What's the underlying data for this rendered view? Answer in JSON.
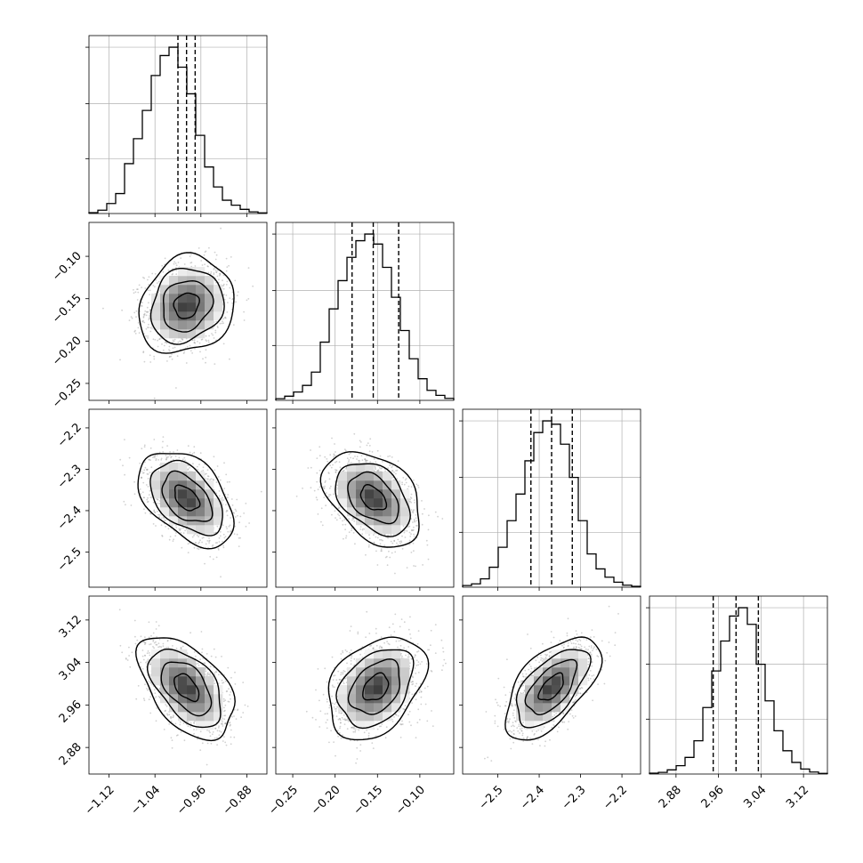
{
  "chart_data": {
    "type": "corner",
    "title": "",
    "colors": {
      "line": "#000000",
      "grid": "#b0b0b0",
      "points": "#9a9a9a",
      "frame": "#000000"
    },
    "grid": true,
    "parameters": [
      {
        "range": [
          -1.155,
          -0.845
        ],
        "ticks": [
          -1.12,
          -1.04,
          -0.96,
          -0.88
        ],
        "tick_labels": [
          "−1.12",
          "−1.04",
          "−0.96",
          "−0.88"
        ],
        "quantiles": [
          -1.0,
          -0.985,
          -0.97
        ],
        "hist_y_max": 1.07,
        "hist_y_ticks": [
          0.33,
          0.66,
          1.0
        ],
        "hist": [
          0.005,
          0.02,
          0.06,
          0.12,
          0.3,
          0.45,
          0.62,
          0.83,
          0.95,
          1.0,
          0.88,
          0.72,
          0.47,
          0.28,
          0.16,
          0.08,
          0.05,
          0.025,
          0.01,
          0.004
        ]
      },
      {
        "range": [
          -0.27,
          -0.06
        ],
        "ticks": [
          -0.25,
          -0.2,
          -0.15,
          -0.1
        ],
        "tick_labels": [
          "−0.25",
          "−0.20",
          "−0.15",
          "−0.10"
        ],
        "y_ticks": [
          -0.25,
          -0.2,
          -0.15,
          -0.1
        ],
        "y_tick_labels": [
          "−0.25",
          "−0.20",
          "−0.15",
          "−0.10"
        ],
        "quantiles": [
          -0.18,
          -0.155,
          -0.125
        ],
        "hist_y_max": 1.07,
        "hist_y_ticks": [
          0.33,
          0.66,
          1.0
        ],
        "hist": [
          0.01,
          0.025,
          0.05,
          0.09,
          0.17,
          0.35,
          0.55,
          0.72,
          0.86,
          0.96,
          1.0,
          0.94,
          0.8,
          0.62,
          0.42,
          0.25,
          0.13,
          0.06,
          0.03,
          0.012
        ]
      },
      {
        "range": [
          -2.585,
          -2.155
        ],
        "ticks": [
          -2.5,
          -2.4,
          -2.3,
          -2.2
        ],
        "tick_labels": [
          "−2.5",
          "−2.4",
          "−2.3",
          "−2.2"
        ],
        "y_ticks": [
          -2.5,
          -2.4,
          -2.3,
          -2.2
        ],
        "y_tick_labels": [
          "−2.5",
          "−2.4",
          "−2.3",
          "−2.2"
        ],
        "quantiles": [
          -2.42,
          -2.37,
          -2.32
        ],
        "hist_y_max": 1.07,
        "hist_y_ticks": [
          0.33,
          0.66,
          1.0
        ],
        "hist": [
          0.01,
          0.02,
          0.05,
          0.12,
          0.24,
          0.4,
          0.56,
          0.76,
          0.93,
          1.0,
          0.98,
          0.86,
          0.66,
          0.4,
          0.2,
          0.11,
          0.06,
          0.03,
          0.012,
          0.005
        ]
      },
      {
        "range": [
          2.83,
          3.165
        ],
        "ticks": [
          2.88,
          2.96,
          3.04,
          3.12
        ],
        "tick_labels": [
          "2.88",
          "2.96",
          "3.04",
          "3.12"
        ],
        "y_ticks": [
          2.88,
          2.96,
          3.04,
          3.12
        ],
        "y_tick_labels": [
          "2.88",
          "2.96",
          "3.04",
          "3.12"
        ],
        "quantiles": [
          2.95,
          2.993,
          3.035
        ],
        "hist_y_max": 1.07,
        "hist_y_ticks": [
          0.33,
          0.66,
          1.0
        ],
        "hist": [
          0.005,
          0.01,
          0.025,
          0.05,
          0.1,
          0.2,
          0.4,
          0.62,
          0.8,
          0.95,
          1.0,
          0.9,
          0.66,
          0.44,
          0.26,
          0.14,
          0.07,
          0.03,
          0.012,
          0.004
        ]
      }
    ],
    "pairs": [
      {
        "row": 1,
        "col": 0,
        "mean_x": -0.985,
        "mean_y": -0.158,
        "sx": 0.036,
        "sy": 0.025,
        "rho": 0.15
      },
      {
        "row": 2,
        "col": 0,
        "mean_x": -0.985,
        "mean_y": -2.37,
        "sx": 0.036,
        "sy": 0.05,
        "rho": -0.45
      },
      {
        "row": 2,
        "col": 1,
        "mean_x": -0.155,
        "mean_y": -2.37,
        "sx": 0.025,
        "sy": 0.05,
        "rho": -0.4
      },
      {
        "row": 3,
        "col": 0,
        "mean_x": -0.985,
        "mean_y": 2.993,
        "sx": 0.036,
        "sy": 0.042,
        "rho": -0.5
      },
      {
        "row": 3,
        "col": 1,
        "mean_x": -0.152,
        "mean_y": 2.993,
        "sx": 0.025,
        "sy": 0.042,
        "rho": 0.35
      },
      {
        "row": 3,
        "col": 2,
        "mean_x": -2.37,
        "mean_y": 2.993,
        "sx": 0.05,
        "sy": 0.042,
        "rho": 0.6
      }
    ],
    "contour_levels_sigma": [
      0.6,
      1.2,
      1.75,
      2.3
    ]
  }
}
